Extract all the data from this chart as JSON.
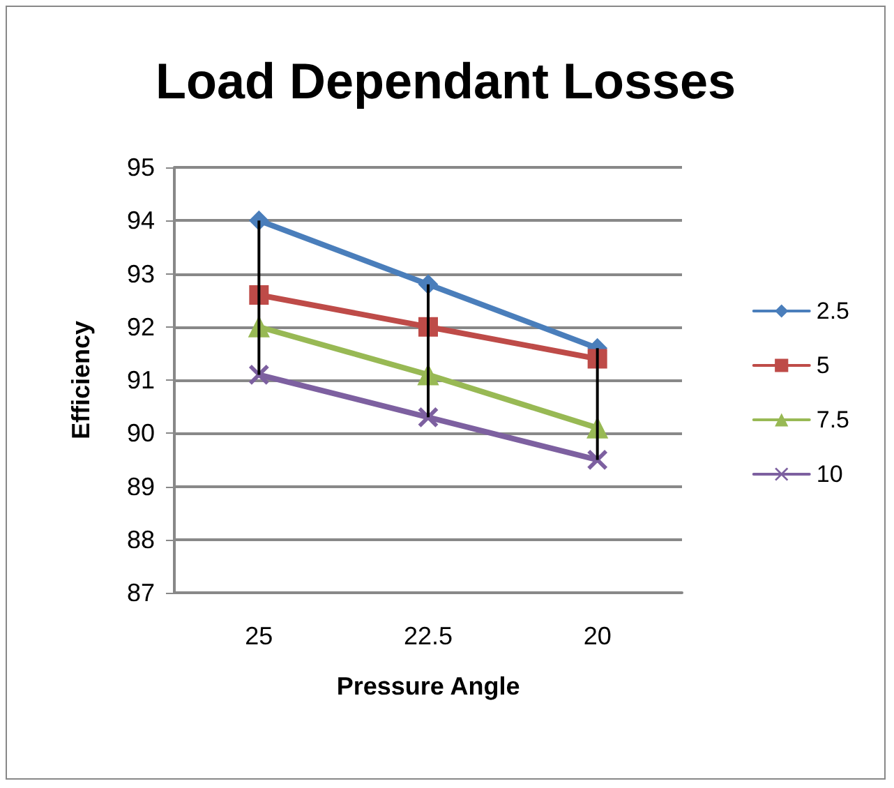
{
  "chart_data": {
    "type": "line",
    "title": "Load Dependant Losses",
    "xlabel": "Pressure Angle",
    "ylabel": "Efficiency",
    "categories": [
      "25",
      "22.5",
      "20"
    ],
    "ylim": [
      87,
      95
    ],
    "yticks": [
      87,
      88,
      89,
      90,
      91,
      92,
      93,
      94,
      95
    ],
    "grid": "y",
    "legend": "right",
    "line_style": "solid",
    "series": [
      {
        "name": "2.5",
        "color": "#4a7ebb",
        "marker": "diamond",
        "values": [
          94.0,
          92.8,
          91.6
        ],
        "errors": [
          [
            91.1,
            94.0
          ],
          [
            90.3,
            92.8
          ],
          [
            89.5,
            91.6
          ]
        ]
      },
      {
        "name": "5",
        "color": "#be4b48",
        "marker": "square",
        "values": [
          92.6,
          92.0,
          91.4
        ]
      },
      {
        "name": "7.5",
        "color": "#98b954",
        "marker": "triangle",
        "values": [
          92.0,
          91.1,
          90.1
        ]
      },
      {
        "name": "10",
        "color": "#7d60a0",
        "marker": "cross",
        "values": [
          91.1,
          90.3,
          89.5
        ]
      }
    ]
  }
}
